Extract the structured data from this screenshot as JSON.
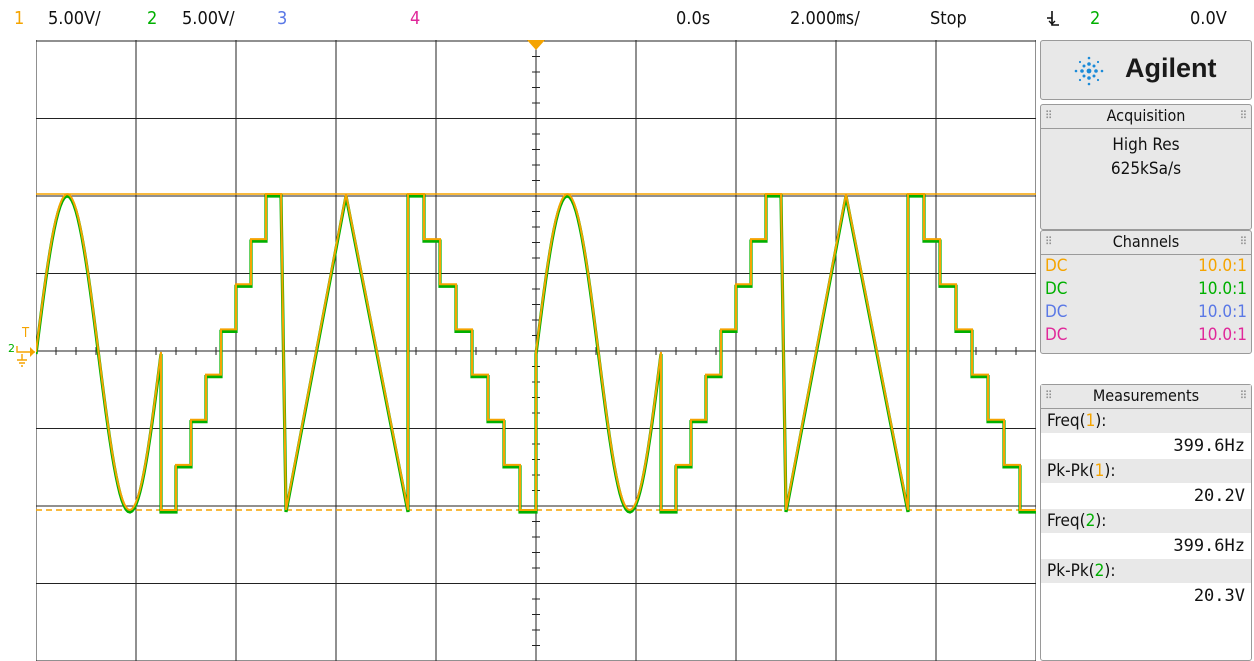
{
  "top_bar": {
    "ch1_num": "1",
    "ch1_scale": "5.00V/",
    "ch2_num": "2",
    "ch2_scale": "5.00V/",
    "ch3_num": "3",
    "ch4_num": "4",
    "time_delay": "0.0s",
    "time_scale": "2.000㎳/",
    "run_state": "Stop",
    "trigger_icon": "falling-edge-icon",
    "trigger_source": "2",
    "trigger_level": "0.0V"
  },
  "markers": {
    "trigger_marker": "T",
    "ground_marker": "2"
  },
  "panel": {
    "brand": "Agilent",
    "acquisition": {
      "title": "Acquisition",
      "mode": "High Res",
      "rate": "625kSa/s"
    },
    "channels": {
      "title": "Channels",
      "rows": [
        {
          "coupling": "DC",
          "probe": "10.0:1",
          "color": "#f5a400"
        },
        {
          "coupling": "DC",
          "probe": "10.0:1",
          "color": "#00b000"
        },
        {
          "coupling": "DC",
          "probe": "10.0:1",
          "color": "#5a78e6"
        },
        {
          "coupling": "DC",
          "probe": "10.0:1",
          "color": "#e0289a"
        }
      ]
    },
    "measurements": {
      "title": "Measurements",
      "items": [
        {
          "label_pre": "Freq(",
          "label_ch": "1",
          "label_post": "):",
          "value": "399.6Hz",
          "ch_color": "#f5a400"
        },
        {
          "label_pre": "Pk-Pk(",
          "label_ch": "1",
          "label_post": "):",
          "value": "20.2V",
          "ch_color": "#f5a400"
        },
        {
          "label_pre": "Freq(",
          "label_ch": "2",
          "label_post": "):",
          "value": "399.6Hz",
          "ch_color": "#00b000"
        },
        {
          "label_pre": "Pk-Pk(",
          "label_ch": "2",
          "label_post": "):",
          "value": "20.3V",
          "ch_color": "#00b000"
        }
      ]
    }
  },
  "colors": {
    "ch1": "#f5a400",
    "ch2": "#00b000",
    "ch3": "#5a78e6",
    "ch4": "#e0289a",
    "grid": "#222222",
    "panel_bg": "#e8e8e8"
  }
}
